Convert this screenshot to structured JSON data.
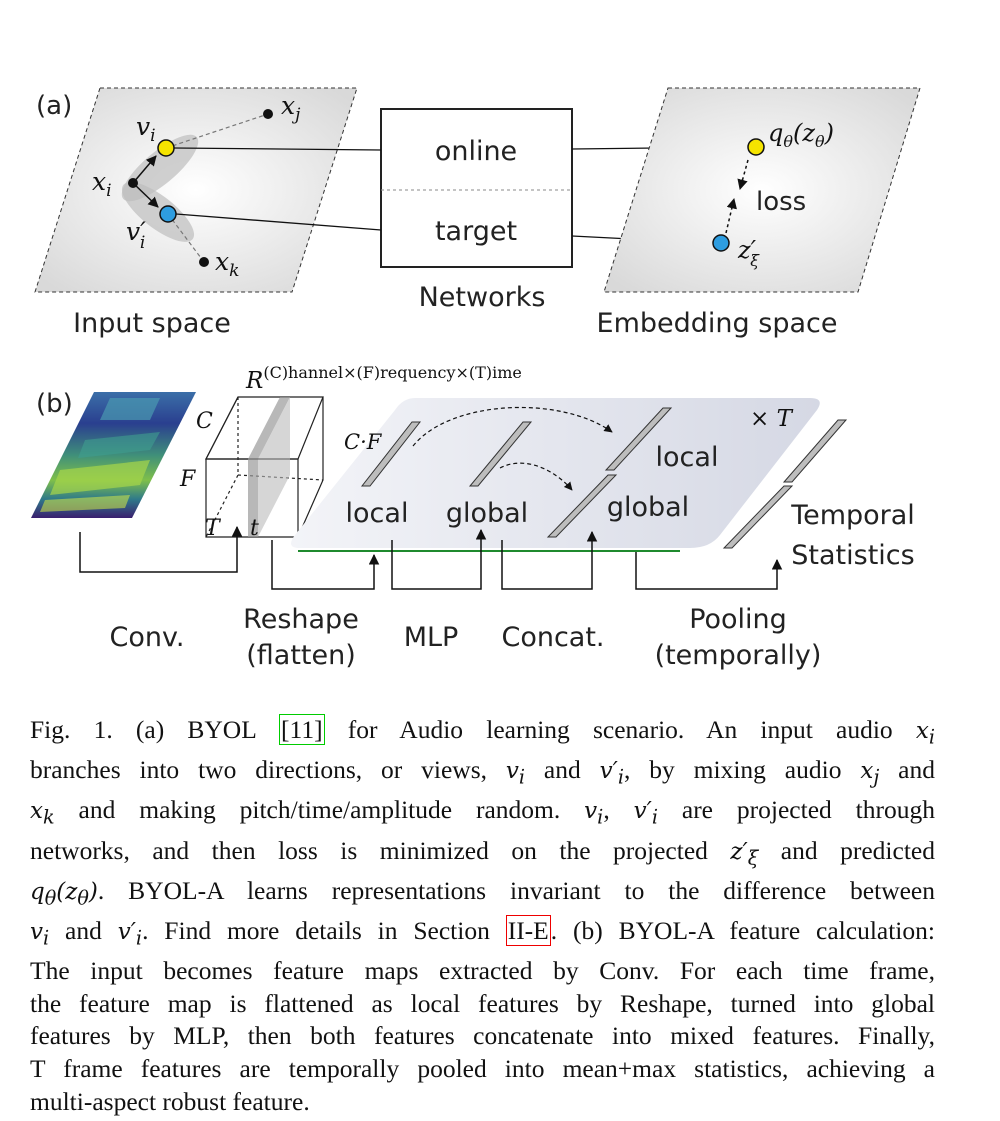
{
  "panel_a": {
    "label": "(a)",
    "input_space_label": "Input space",
    "embedding_space_label": "Embedding space",
    "networks_label": "Networks",
    "online_label": "online",
    "target_label": "target",
    "loss_label": "loss",
    "math": {
      "xj": "x",
      "xj_sub": "j",
      "vi": "v",
      "vi_sub": "i",
      "xi": "x",
      "xi_sub": "i",
      "vpi": "v′",
      "vpi_sub": "i",
      "xk": "x",
      "xk_sub": "k",
      "q": "q",
      "q_sub": "θ",
      "q_arg": "(z",
      "q_arg_sub": "θ",
      "q_close": ")",
      "z": "z′",
      "z_sub": "ξ"
    }
  },
  "panel_b": {
    "label": "(b)",
    "R_base": "R",
    "R_sup": "(C)hannel×(F)requency×(T)ime",
    "C": "C",
    "F": "F",
    "T": "T",
    "t": "t",
    "CF": "C·F",
    "xT": "× T",
    "local_1": "local",
    "global_1": "global",
    "local_2": "local",
    "global_2": "global",
    "temporal_line1": "Temporal",
    "temporal_line2": "Statistics",
    "conv": "Conv.",
    "reshape_line1": "Reshape",
    "reshape_line2": "(flatten)",
    "mlp": "MLP",
    "concat": "Concat.",
    "pooling_line1": "Pooling",
    "pooling_line2": "(temporally)"
  },
  "caption": {
    "l1": [
      "Fig. 1.   (a) BYOL ",
      "[11]",
      " for Audio learning scenario. An input audio "
    ],
    "l2": [
      "branches into two directions, or views, ",
      " and ",
      ", by mixing audio ",
      " and"
    ],
    "l3": [
      " and making pitch/time/amplitude random. ",
      ", ",
      " are projected through"
    ],
    "l4": [
      "networks, and then loss is minimized on the projected ",
      " and predicted"
    ],
    "l5": [
      ". BYOL-A learns representations invariant to the difference between"
    ],
    "l6": [
      " and ",
      ". Find more details in Section ",
      "II-E",
      ". (b) BYOL-A feature calculation:"
    ],
    "l7": "The input becomes feature maps extracted by Conv. For each time frame,",
    "l8": "the feature map is flattened as local features by Reshape, turned into global",
    "l9": "features by MLP, then both features concatenate into mixed features. Finally,",
    "l10": "T frame features are temporally pooled into mean+max statistics, achieving a",
    "l11": "multi-aspect robust feature.",
    "m_xi": "x",
    "m_xi_sub": "i",
    "m_vi": "v",
    "m_vi_sub": "i",
    "m_vpi": "v′",
    "m_vpi_sub": "i",
    "m_xj": "x",
    "m_xj_sub": "j",
    "m_xk": "x",
    "m_xk_sub": "k",
    "m_z": "z′",
    "m_z_sub": "ξ",
    "m_q": "q",
    "m_q_sub": "θ",
    "m_q_arg": "(z",
    "m_q_arg_sub": "θ",
    "m_q_close": ")"
  }
}
